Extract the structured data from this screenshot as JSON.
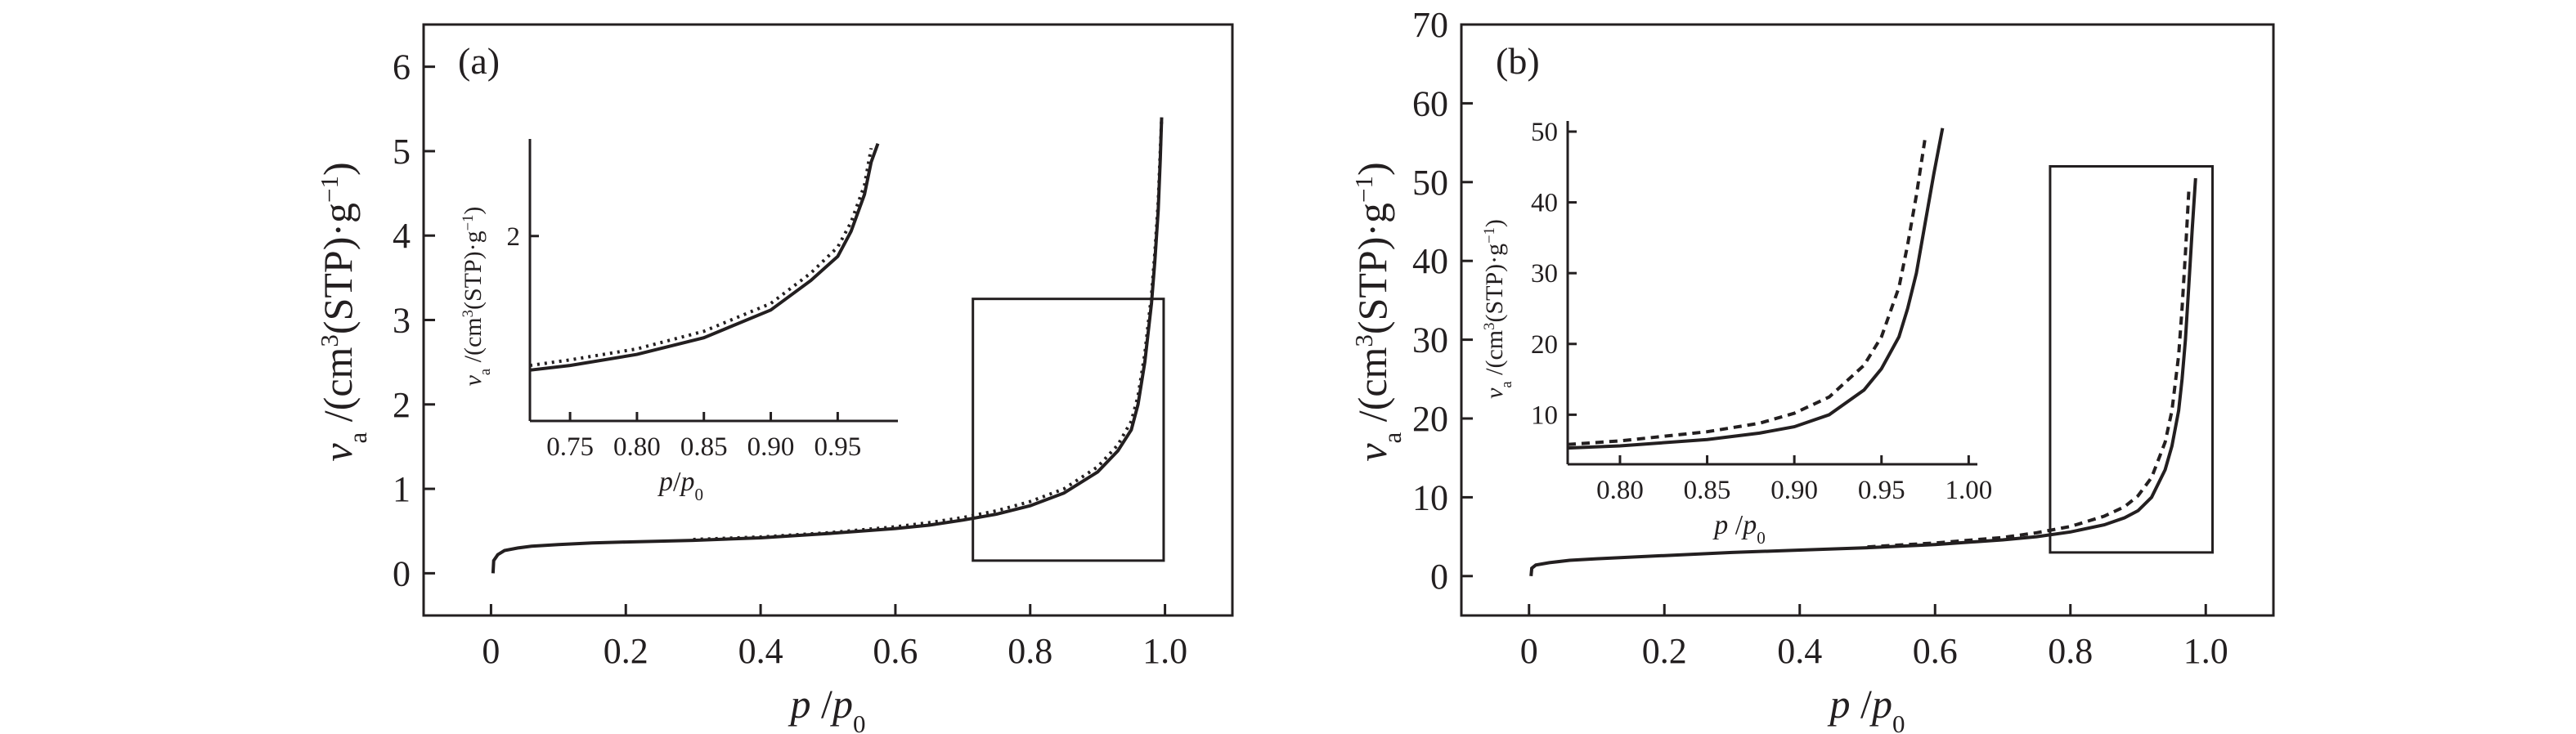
{
  "chart_data": [
    {
      "type": "line",
      "panel_label": "(a)",
      "xlabel": {
        "italic": "p",
        "sep": " /",
        "italic2": "p",
        "sub": "0"
      },
      "ylabel": {
        "italic": "v",
        "sub": "a",
        "rest": " /(cm",
        "sup": "3",
        "rest2": "(STP)·g",
        "sup2": "−1",
        "rest3": ")"
      },
      "xlim": [
        -0.1,
        1.1
      ],
      "ylim": [
        -0.5,
        6.5
      ],
      "xticks": [
        0,
        0.2,
        0.4,
        0.6,
        0.8,
        1.0
      ],
      "xtick_labels": [
        "0",
        "0.2",
        "0.4",
        "0.6",
        "0.8",
        "1.0"
      ],
      "yticks": [
        0,
        1,
        2,
        3,
        4,
        5,
        6
      ],
      "ytick_labels": [
        "0",
        "1",
        "2",
        "3",
        "4",
        "5",
        "6"
      ],
      "zoom_box": {
        "x": [
          0.715,
          0.998
        ],
        "y": [
          0.15,
          3.25
        ]
      },
      "series": [
        {
          "style": "solid",
          "x": [
            0.003,
            0.004,
            0.01,
            0.02,
            0.04,
            0.06,
            0.1,
            0.15,
            0.2,
            0.3,
            0.4,
            0.5,
            0.6,
            0.65,
            0.7,
            0.75,
            0.8,
            0.85,
            0.9,
            0.93,
            0.95,
            0.96,
            0.97,
            0.98,
            0.985,
            0.99,
            0.993,
            0.995
          ],
          "y": [
            0.0,
            0.15,
            0.22,
            0.27,
            0.3,
            0.32,
            0.34,
            0.36,
            0.37,
            0.39,
            0.42,
            0.47,
            0.53,
            0.57,
            0.63,
            0.7,
            0.8,
            0.95,
            1.2,
            1.45,
            1.7,
            2.0,
            2.5,
            3.2,
            3.7,
            4.3,
            4.9,
            5.4
          ]
        },
        {
          "style": "dotted",
          "x": [
            0.3,
            0.4,
            0.5,
            0.6,
            0.65,
            0.7,
            0.75,
            0.8,
            0.85,
            0.9,
            0.93,
            0.95,
            0.96,
            0.97,
            0.98,
            0.985,
            0.99,
            0.993,
            0.995
          ],
          "y": [
            0.4,
            0.43,
            0.48,
            0.55,
            0.6,
            0.66,
            0.74,
            0.85,
            1.0,
            1.26,
            1.52,
            1.8,
            2.1,
            2.6,
            3.3,
            3.8,
            4.4,
            5.0,
            5.4
          ]
        }
      ],
      "inset": {
        "xlim": [
          0.72,
          0.995
        ],
        "ylim": [
          0.0,
          3.05
        ],
        "xticks": [
          0.75,
          0.8,
          0.85,
          0.9,
          0.95
        ],
        "xtick_labels": [
          "0.75",
          "0.80",
          "0.85",
          "0.90",
          "0.95"
        ],
        "yticks": [
          2
        ],
        "ytick_labels": [
          "2"
        ],
        "xlabel": {
          "italic": "p",
          "sep": "/",
          "italic2": "p",
          "sub": "0"
        },
        "ylabel": {
          "italic": "v",
          "sub": "a",
          "rest": " /(cm",
          "sup": "3",
          "rest2": "(STP)·g",
          "sup2": "−1",
          "rest3": ")"
        },
        "series": [
          {
            "style": "solid",
            "x": [
              0.72,
              0.75,
              0.8,
              0.85,
              0.9,
              0.93,
              0.95,
              0.96,
              0.97,
              0.975,
              0.98
            ],
            "y": [
              0.55,
              0.6,
              0.72,
              0.9,
              1.2,
              1.52,
              1.78,
              2.05,
              2.45,
              2.8,
              3.0
            ]
          },
          {
            "style": "dotted",
            "x": [
              0.72,
              0.75,
              0.8,
              0.85,
              0.9,
              0.93,
              0.95,
              0.96,
              0.97,
              0.975
            ],
            "y": [
              0.6,
              0.66,
              0.78,
              0.97,
              1.27,
              1.6,
              1.88,
              2.15,
              2.55,
              2.95
            ]
          }
        ]
      }
    },
    {
      "type": "line",
      "panel_label": "(b)",
      "xlabel": {
        "italic": "p",
        "sep": " /",
        "italic2": "p",
        "sub": "0"
      },
      "ylabel": {
        "italic": "v",
        "sub": "a",
        "rest": " /(cm",
        "sup": "3",
        "rest2": "(STP)·g",
        "sup2": "−1",
        "rest3": ")"
      },
      "xlim": [
        -0.1,
        1.1
      ],
      "ylim": [
        -5,
        70
      ],
      "xticks": [
        0,
        0.2,
        0.4,
        0.6,
        0.8,
        1.0
      ],
      "xtick_labels": [
        "0",
        "0.2",
        "0.4",
        "0.6",
        "0.8",
        "1.0"
      ],
      "yticks": [
        0,
        10,
        20,
        30,
        40,
        50,
        60,
        70
      ],
      "ytick_labels": [
        "0",
        "10",
        "20",
        "30",
        "40",
        "50",
        "60",
        "70"
      ],
      "zoom_box": {
        "x": [
          0.77,
          1.01
        ],
        "y": [
          3.0,
          52.0
        ]
      },
      "series": [
        {
          "style": "solid",
          "x": [
            0.003,
            0.004,
            0.01,
            0.03,
            0.06,
            0.1,
            0.2,
            0.3,
            0.4,
            0.5,
            0.6,
            0.7,
            0.75,
            0.8,
            0.85,
            0.88,
            0.9,
            0.92,
            0.94,
            0.95,
            0.96,
            0.965,
            0.97,
            0.975,
            0.98,
            0.985
          ],
          "y": [
            0.0,
            1.0,
            1.4,
            1.7,
            2.0,
            2.2,
            2.6,
            3.0,
            3.3,
            3.6,
            4.0,
            4.6,
            5.0,
            5.6,
            6.5,
            7.4,
            8.3,
            10.0,
            13.5,
            16.5,
            21.0,
            25.0,
            30.0,
            37.0,
            44.0,
            50.5
          ]
        },
        {
          "style": "dashed",
          "x": [
            0.5,
            0.6,
            0.7,
            0.75,
            0.8,
            0.85,
            0.88,
            0.9,
            0.92,
            0.94,
            0.95,
            0.96,
            0.965,
            0.97,
            0.975
          ],
          "y": [
            3.7,
            4.2,
            4.9,
            5.5,
            6.3,
            7.6,
            8.8,
            10.2,
            12.5,
            17.0,
            21.0,
            28.0,
            34.0,
            41.0,
            49.0
          ]
        }
      ],
      "inset": {
        "xlim": [
          0.77,
          1.005
        ],
        "ylim": [
          3.0,
          51.5
        ],
        "xticks": [
          0.8,
          0.85,
          0.9,
          0.95,
          1.0
        ],
        "xtick_labels": [
          "0.80",
          "0.85",
          "0.90",
          "0.95",
          "1.00"
        ],
        "yticks": [
          10,
          20,
          30,
          40,
          50
        ],
        "ytick_labels": [
          "10",
          "20",
          "30",
          "40",
          "50"
        ],
        "xlabel": {
          "italic": "p",
          "sep": " /",
          "italic2": "p",
          "sub": "0"
        },
        "ylabel": {
          "italic": "v",
          "sub": "a",
          "rest": " /(cm",
          "sup": "3",
          "rest2": "(STP)·g",
          "sup2": "−1",
          "rest3": ")"
        },
        "series": [
          {
            "style": "solid",
            "x": [
              0.77,
              0.8,
              0.85,
              0.88,
              0.9,
              0.92,
              0.94,
              0.95,
              0.96,
              0.965,
              0.97,
              0.975,
              0.98,
              0.985
            ],
            "y": [
              5.3,
              5.6,
              6.5,
              7.4,
              8.3,
              10.0,
              13.5,
              16.5,
              21.0,
              25.0,
              30.0,
              37.0,
              44.0,
              50.5
            ]
          },
          {
            "style": "dashed",
            "x": [
              0.77,
              0.8,
              0.85,
              0.88,
              0.9,
              0.92,
              0.94,
              0.95,
              0.96,
              0.965,
              0.97,
              0.975
            ],
            "y": [
              5.8,
              6.3,
              7.6,
              8.8,
              10.2,
              12.5,
              17.0,
              21.0,
              28.0,
              34.0,
              41.0,
              49.0
            ]
          }
        ]
      }
    }
  ]
}
